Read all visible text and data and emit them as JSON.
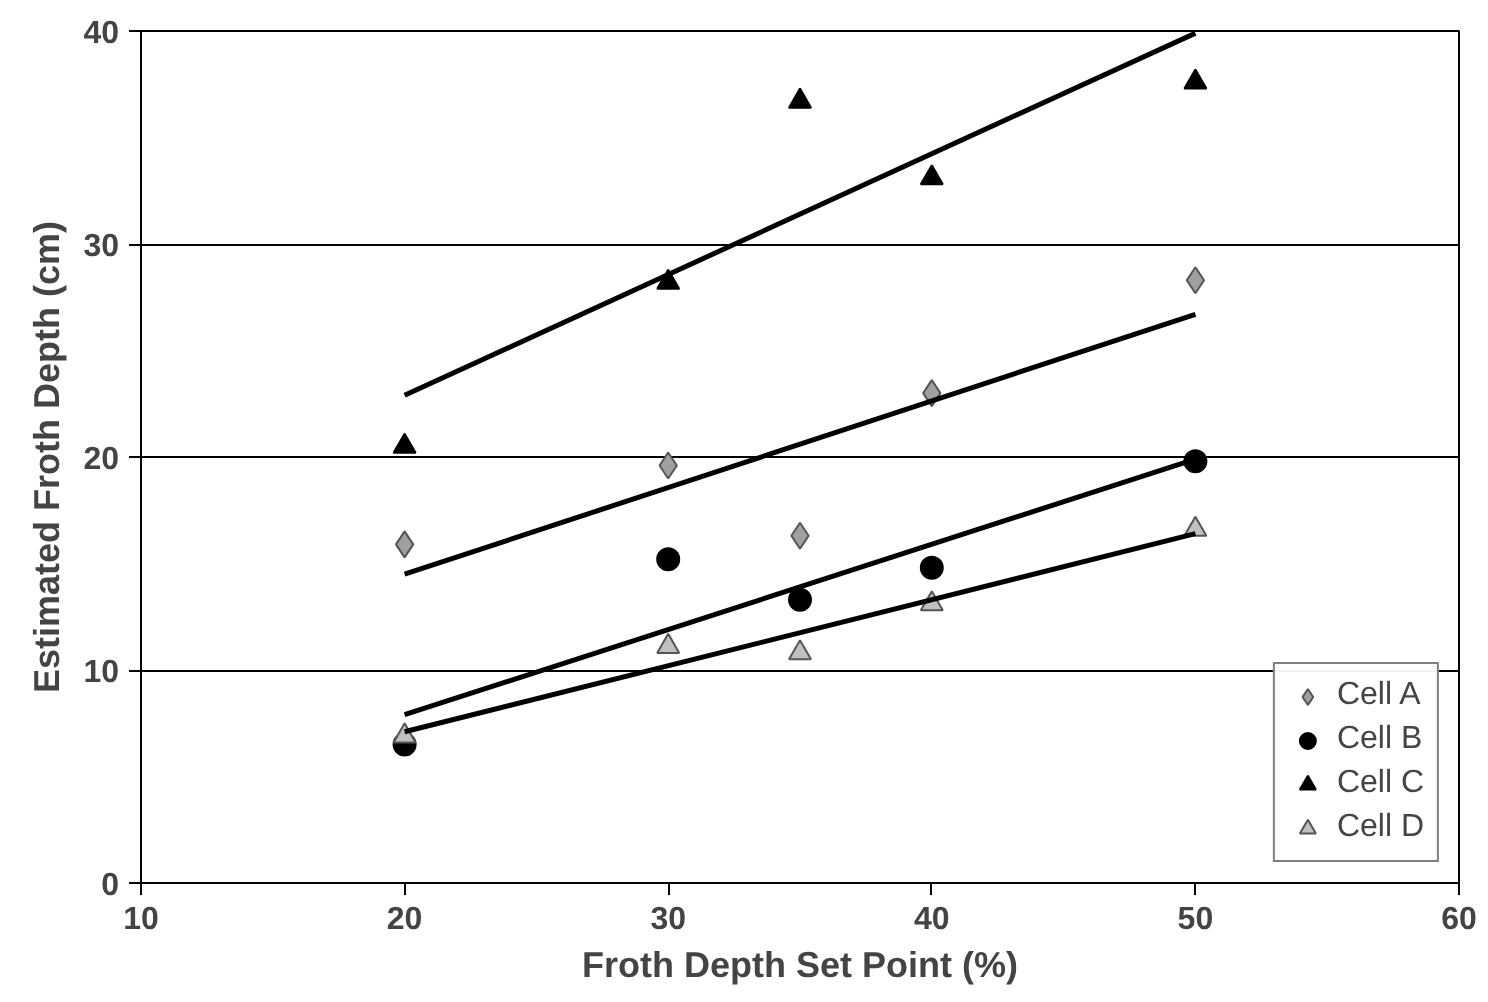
{
  "chart_data": {
    "type": "scatter",
    "xlabel": "Froth Depth Set Point (%)",
    "ylabel": "Estimated Froth Depth (cm)",
    "xlim": [
      10,
      60
    ],
    "xticks": [
      10,
      20,
      30,
      40,
      50,
      60
    ],
    "ylim": [
      0,
      40
    ],
    "yticks": [
      0,
      10,
      20,
      30,
      40
    ],
    "grid": "y",
    "legend": "bottom right",
    "series": [
      {
        "name": "Cell A",
        "color": "#a0a0a0",
        "marker": "diamond",
        "x": [
          20,
          30,
          35,
          40,
          50
        ],
        "values": [
          15.9,
          19.6,
          16.3,
          23.0,
          28.3
        ]
      },
      {
        "name": "Cell B",
        "color": "#000000",
        "marker": "circle",
        "x": [
          20,
          30,
          35,
          40,
          50
        ],
        "values": [
          6.5,
          15.2,
          13.3,
          14.8,
          19.8
        ]
      },
      {
        "name": "Cell C",
        "color": "#000000",
        "marker": "triangle",
        "x": [
          20,
          30,
          35,
          40,
          50
        ],
        "values": [
          20.5,
          28.2,
          36.7,
          33.1,
          37.6
        ]
      },
      {
        "name": "Cell D",
        "color": "#c0c0c0",
        "marker": "triangle",
        "x": [
          20,
          30,
          35,
          40,
          50
        ],
        "values": [
          6.9,
          11.1,
          10.8,
          13.1,
          16.6
        ]
      },
      {
        "type": "line",
        "color": "#000000",
        "x": [
          20,
          50
        ],
        "values": [
          14.5,
          26.7
        ]
      },
      {
        "type": "line",
        "color": "#000000",
        "x": [
          20,
          50
        ],
        "values": [
          7.9,
          19.9
        ]
      },
      {
        "type": "line",
        "color": "#000000",
        "x": [
          20,
          50
        ],
        "values": [
          22.9,
          39.9
        ]
      },
      {
        "type": "line",
        "color": "#000000",
        "x": [
          20,
          50
        ],
        "values": [
          7.1,
          16.4
        ]
      }
    ]
  }
}
